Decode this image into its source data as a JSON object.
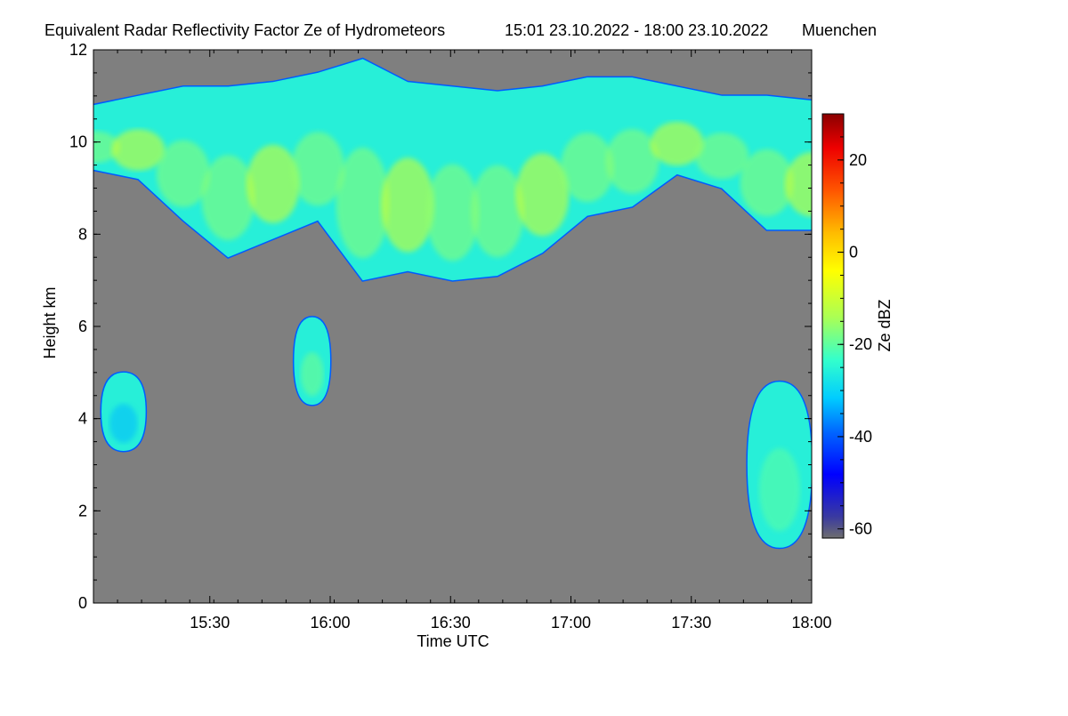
{
  "chart_data": {
    "type": "heatmap",
    "title": "Equivalent Radar Reflectivity Factor Ze of Hydrometeors",
    "time_range": "15:01 23.10.2022 - 18:00 23.10.2022",
    "location": "Muenchen",
    "xlabel": "Time UTC",
    "ylabel": "Height km",
    "x_range_min": [
      901,
      1080
    ],
    "x_tick_labels": [
      "15:30",
      "16:00",
      "16:30",
      "17:00",
      "17:30",
      "18:00"
    ],
    "x_tick_values_min": [
      930,
      960,
      990,
      1020,
      1050,
      1080
    ],
    "ylim": [
      0,
      12
    ],
    "y_ticks": [
      0,
      2,
      4,
      6,
      8,
      10,
      12
    ],
    "colorbar": {
      "label": "Ze dBZ",
      "range": [
        -62,
        30
      ],
      "ticks": [
        -60,
        -40,
        -20,
        0,
        20
      ],
      "colormap": "jet",
      "no_signal_color": "#808080"
    },
    "background_color": "#7f7f7f",
    "echo_regions": [
      {
        "name": "cirrus layer",
        "t_start": 901,
        "t_end": 1080,
        "base_km": [
          9.4,
          9.2,
          8.3,
          7.5,
          7.9,
          8.3,
          7.0,
          7.2,
          7.0,
          7.1,
          7.6,
          8.4,
          8.6,
          9.3,
          9.0,
          8.1,
          8.1
        ],
        "top_km": [
          10.8,
          11.0,
          11.2,
          11.2,
          11.3,
          11.5,
          11.8,
          11.3,
          11.2,
          11.1,
          11.2,
          11.4,
          11.4,
          11.2,
          11.0,
          11.0,
          10.9
        ],
        "peak_dBZ": -8
      },
      {
        "name": "mid-level cell",
        "t_start": 951,
        "t_end": 960,
        "base_km": 4.3,
        "top_km": 6.2,
        "peak_dBZ": -10
      },
      {
        "name": "low cloud left",
        "t_start": 903,
        "t_end": 914,
        "base_km": 3.3,
        "top_km": 5.0,
        "peak_dBZ": -25
      },
      {
        "name": "low cloud right",
        "t_start": 1064,
        "t_end": 1080,
        "base_km": 1.2,
        "top_km": 4.8,
        "peak_dBZ": -12
      }
    ]
  }
}
